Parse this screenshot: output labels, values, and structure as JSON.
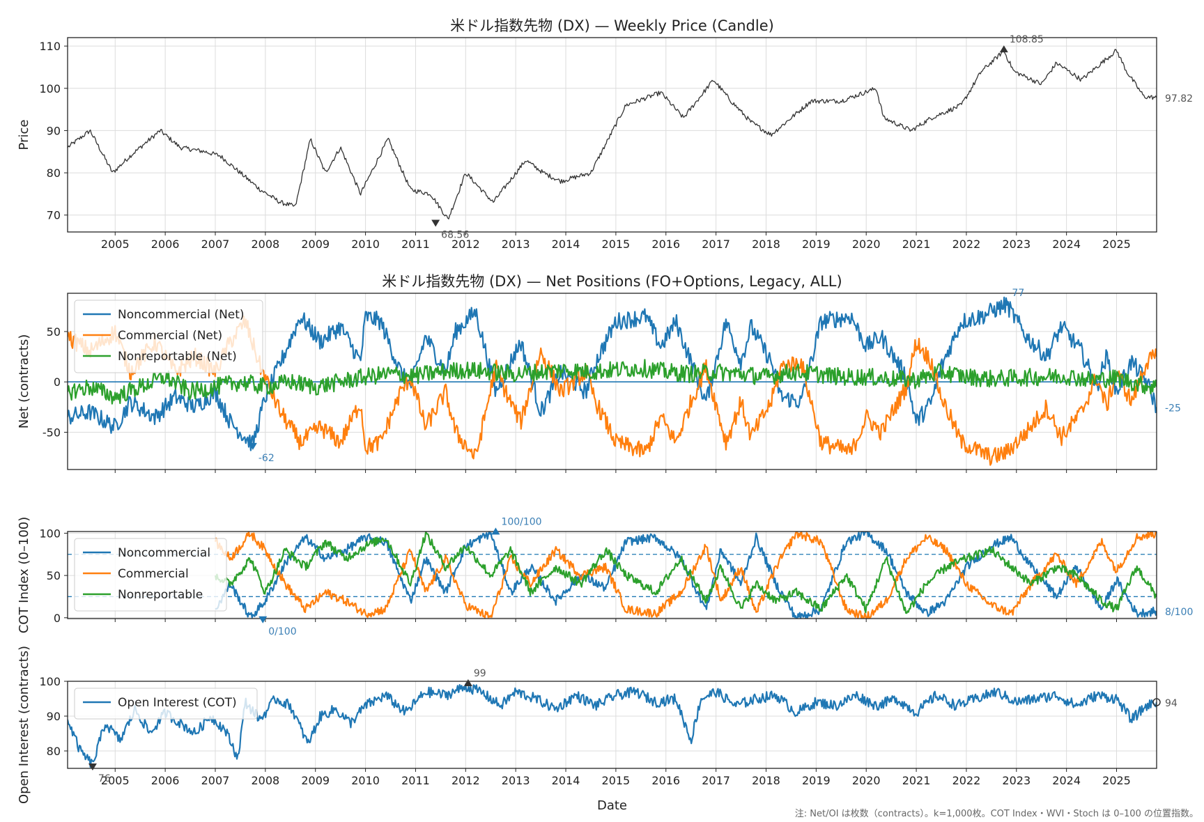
{
  "footnote": "注: Net/OI は枚数（contracts）。k=1,000枚。COT Index・WVI・Stoch は 0–100 の位置指数。",
  "chart_data": [
    {
      "id": "price",
      "type": "candlestick",
      "title": "米ドル指数先物 (DX) — Weekly Price (Candle)",
      "ylabel": "Price",
      "xlabel": "",
      "xlim": [
        2004.05,
        2025.8
      ],
      "ylim": [
        66,
        112
      ],
      "yticks": [
        70,
        80,
        90,
        100,
        110
      ],
      "xtick_years": [
        "2005",
        "2006",
        "2007",
        "2008",
        "2009",
        "2010",
        "2011",
        "2012",
        "2013",
        "2014",
        "2015",
        "2016",
        "2017",
        "2018",
        "2019",
        "2020",
        "2021",
        "2022",
        "2023",
        "2024",
        "2025"
      ],
      "grid": true,
      "color": "#333333",
      "series": [
        {
          "x": [
            2004.05,
            2004.5,
            2004.95,
            2005.3,
            2005.9,
            2006.3,
            2006.8,
            2007.1,
            2007.5,
            2007.9,
            2008.3,
            2008.6,
            2008.9,
            2009.2,
            2009.5,
            2009.9,
            2010.45,
            2010.9,
            2011.3,
            2011.65,
            2012.0,
            2012.55,
            2013.2,
            2013.55,
            2013.9,
            2014.5,
            2015.2,
            2015.9,
            2016.35,
            2016.95,
            2017.3,
            2017.7,
            2018.1,
            2018.9,
            2019.5,
            2020.2,
            2020.35,
            2020.9,
            2021.3,
            2021.9,
            2022.3,
            2022.75,
            2022.95,
            2023.5,
            2023.8,
            2024.3,
            2024.5,
            2025.0,
            2025.2,
            2025.55,
            2025.8
          ],
          "values": [
            86,
            90,
            80,
            84,
            90,
            86,
            85,
            84,
            80,
            76,
            73,
            72,
            88,
            80,
            86,
            75,
            88,
            76,
            75,
            69,
            80,
            73,
            83,
            80,
            78,
            80,
            96,
            99,
            93,
            102,
            97,
            92,
            89,
            97,
            97,
            100,
            93,
            90,
            93,
            96,
            104,
            108.85,
            104,
            101,
            106,
            102,
            104,
            109,
            104,
            98,
            97.82
          ]
        }
      ],
      "annotations": [
        {
          "text": "108.85",
          "x": 2022.75,
          "y": 108.85
        },
        {
          "text": "68.56",
          "x": 2011.4,
          "y": 68.56
        },
        {
          "text": "97.82",
          "x": 2025.8,
          "y": 97.82
        }
      ]
    },
    {
      "id": "net",
      "type": "line",
      "title": "米ドル指数先物 (DX) — Net Positions (FO+Options, Legacy, ALL)",
      "ylabel": "Net (contracts)",
      "xlim": [
        2004.05,
        2025.8
      ],
      "ylim": [
        -87,
        88
      ],
      "yticks": [
        -50,
        0,
        50
      ],
      "hline": 0,
      "legend": "top-left",
      "grid": true,
      "series": [
        {
          "name": "Noncommercial (Net)",
          "color": "#1f77b4",
          "x": [
            2004.05,
            2004.5,
            2005.0,
            2005.3,
            2005.8,
            2006.2,
            2006.6,
            2007.0,
            2007.3,
            2007.6,
            2007.75,
            2008.0,
            2008.4,
            2008.7,
            2009.1,
            2009.5,
            2009.9,
            2010.0,
            2010.3,
            2010.7,
            2010.9,
            2011.2,
            2011.6,
            2011.8,
            2012.2,
            2012.6,
            2012.8,
            2013.1,
            2013.5,
            2013.9,
            2014.4,
            2014.6,
            2015.0,
            2015.6,
            2015.9,
            2016.2,
            2016.5,
            2016.8,
            2017.2,
            2017.5,
            2017.7,
            2018.1,
            2018.3,
            2018.7,
            2019.1,
            2019.7,
            2020.0,
            2020.3,
            2020.8,
            2021.0,
            2021.3,
            2021.5,
            2021.9,
            2022.3,
            2022.5,
            2022.8,
            2023.2,
            2023.6,
            2023.9,
            2024.3,
            2024.6,
            2024.8,
            2025.0,
            2025.3,
            2025.6,
            2025.8
          ],
          "values": [
            -35,
            -30,
            -45,
            -20,
            -35,
            -15,
            -25,
            -10,
            -40,
            -55,
            -62,
            -15,
            30,
            65,
            40,
            55,
            20,
            65,
            60,
            10,
            -5,
            45,
            10,
            50,
            70,
            -10,
            10,
            40,
            -30,
            10,
            -10,
            20,
            60,
            65,
            35,
            60,
            20,
            -20,
            60,
            20,
            55,
            20,
            -15,
            -20,
            60,
            65,
            35,
            45,
            5,
            -40,
            -20,
            15,
            60,
            65,
            70,
            77,
            45,
            25,
            55,
            30,
            -5,
            25,
            -10,
            20,
            0,
            -25
          ]
        },
        {
          "name": "Commercial (Net)",
          "color": "#ff7f0e",
          "x": [
            2004.05,
            2004.5,
            2005.0,
            2005.3,
            2005.8,
            2006.2,
            2006.6,
            2007.0,
            2007.3,
            2007.6,
            2007.9,
            2008.3,
            2008.7,
            2009.1,
            2009.5,
            2009.9,
            2010.0,
            2010.3,
            2010.7,
            2010.9,
            2011.2,
            2011.6,
            2011.8,
            2012.2,
            2012.6,
            2012.8,
            2013.1,
            2013.5,
            2013.9,
            2014.4,
            2014.6,
            2015.0,
            2015.6,
            2015.9,
            2016.2,
            2016.5,
            2016.8,
            2017.2,
            2017.5,
            2017.7,
            2018.1,
            2018.3,
            2018.7,
            2019.1,
            2019.7,
            2020.0,
            2020.3,
            2020.8,
            2021.0,
            2021.3,
            2021.5,
            2021.9,
            2022.3,
            2022.5,
            2022.8,
            2023.2,
            2023.6,
            2023.9,
            2024.3,
            2024.6,
            2024.8,
            2025.0,
            2025.3,
            2025.6,
            2025.8
          ],
          "values": [
            45,
            30,
            50,
            10,
            40,
            10,
            25,
            10,
            40,
            60,
            15,
            -30,
            -60,
            -45,
            -60,
            -20,
            -65,
            -60,
            -10,
            5,
            -45,
            -10,
            -50,
            -75,
            15,
            -10,
            -40,
            30,
            -10,
            10,
            -20,
            -60,
            -70,
            -35,
            -60,
            -20,
            15,
            -60,
            -20,
            -55,
            -20,
            15,
            20,
            -60,
            -70,
            -35,
            -50,
            -5,
            40,
            20,
            -15,
            -60,
            -70,
            -75,
            -70,
            -50,
            -25,
            -55,
            -30,
            5,
            -25,
            10,
            -20,
            20,
            25
          ]
        },
        {
          "name": "Nonreportable (Net)",
          "color": "#2ca02c",
          "x": [
            2004.05,
            2004.5,
            2005.0,
            2005.5,
            2006.0,
            2006.5,
            2007.0,
            2007.5,
            2008.0,
            2008.5,
            2009.0,
            2009.5,
            2010.0,
            2010.5,
            2011.0,
            2011.5,
            2012.0,
            2012.5,
            2013.0,
            2013.5,
            2014.0,
            2014.5,
            2015.0,
            2015.5,
            2016.0,
            2016.5,
            2017.0,
            2017.5,
            2018.0,
            2018.5,
            2019.0,
            2019.5,
            2020.0,
            2020.5,
            2021.0,
            2021.5,
            2022.0,
            2022.5,
            2023.0,
            2023.5,
            2024.0,
            2024.5,
            2025.0,
            2025.5,
            2025.8
          ],
          "values": [
            -10,
            -5,
            -15,
            -5,
            5,
            -10,
            -5,
            0,
            -5,
            0,
            -5,
            0,
            5,
            8,
            6,
            10,
            12,
            10,
            8,
            10,
            12,
            10,
            12,
            14,
            10,
            8,
            10,
            8,
            5,
            10,
            8,
            5,
            5,
            3,
            2,
            10,
            5,
            3,
            4,
            5,
            6,
            2,
            4,
            -3,
            -5
          ]
        }
      ],
      "annotations": [
        {
          "text": "77",
          "x": 2022.8,
          "y": 77
        },
        {
          "text": "-62",
          "x": 2007.75,
          "y": -62
        },
        {
          "text": "-25",
          "x": 2025.8,
          "y": -25
        }
      ]
    },
    {
      "id": "cot",
      "type": "line",
      "title": "",
      "ylabel": "COT Index (0–100)",
      "xlim": [
        2004.05,
        2025.8
      ],
      "ylim": [
        -1,
        102
      ],
      "yticks": [
        0,
        50,
        100
      ],
      "hlines": [
        75,
        25
      ],
      "legend": "top-left",
      "grid": true,
      "series": [
        {
          "name": "Noncommercial",
          "color": "#1f77b4",
          "x": [
            2007.0,
            2007.3,
            2007.7,
            2008.0,
            2008.4,
            2008.8,
            2009.2,
            2009.6,
            2010.0,
            2010.4,
            2010.9,
            2011.2,
            2011.6,
            2012.0,
            2012.5,
            2012.9,
            2013.3,
            2013.8,
            2014.3,
            2014.8,
            2015.2,
            2015.8,
            2016.3,
            2016.8,
            2017.1,
            2017.5,
            2017.8,
            2018.2,
            2018.6,
            2019.1,
            2019.6,
            2020.0,
            2020.4,
            2020.8,
            2021.2,
            2021.6,
            2022.0,
            2022.5,
            2022.9,
            2023.3,
            2023.8,
            2024.2,
            2024.7,
            2025.0,
            2025.4,
            2025.8
          ],
          "values": [
            10,
            40,
            0,
            20,
            65,
            95,
            70,
            80,
            95,
            90,
            20,
            70,
            30,
            85,
            100,
            30,
            60,
            20,
            50,
            35,
            90,
            95,
            70,
            10,
            80,
            40,
            95,
            40,
            0,
            10,
            90,
            100,
            80,
            30,
            5,
            20,
            60,
            85,
            95,
            60,
            25,
            60,
            10,
            45,
            5,
            8
          ]
        },
        {
          "name": "Commercial",
          "color": "#ff7f0e",
          "x": [
            2007.0,
            2007.3,
            2007.7,
            2008.0,
            2008.4,
            2008.8,
            2009.2,
            2009.6,
            2010.0,
            2010.4,
            2010.9,
            2011.2,
            2011.6,
            2012.0,
            2012.5,
            2012.9,
            2013.3,
            2013.8,
            2014.3,
            2014.8,
            2015.2,
            2015.8,
            2016.3,
            2016.8,
            2017.1,
            2017.5,
            2017.8,
            2018.2,
            2018.6,
            2019.1,
            2019.6,
            2020.0,
            2020.4,
            2020.8,
            2021.2,
            2021.6,
            2022.0,
            2022.5,
            2022.9,
            2023.3,
            2023.8,
            2024.2,
            2024.7,
            2025.0,
            2025.4,
            2025.8
          ],
          "values": [
            90,
            70,
            100,
            80,
            40,
            10,
            30,
            20,
            5,
            10,
            80,
            30,
            70,
            15,
            0,
            70,
            40,
            80,
            50,
            60,
            10,
            5,
            30,
            85,
            20,
            60,
            5,
            60,
            100,
            90,
            10,
            0,
            20,
            70,
            95,
            80,
            40,
            15,
            5,
            40,
            75,
            40,
            90,
            55,
            95,
            100
          ]
        },
        {
          "name": "Nonreportable",
          "color": "#2ca02c",
          "x": [
            2007.0,
            2007.3,
            2007.7,
            2008.0,
            2008.4,
            2008.8,
            2009.2,
            2009.6,
            2010.0,
            2010.4,
            2010.9,
            2011.2,
            2011.6,
            2012.0,
            2012.5,
            2012.9,
            2013.3,
            2013.8,
            2014.3,
            2014.8,
            2015.2,
            2015.8,
            2016.3,
            2016.8,
            2017.1,
            2017.5,
            2017.8,
            2018.2,
            2018.6,
            2019.1,
            2019.6,
            2020.0,
            2020.4,
            2020.8,
            2021.2,
            2021.6,
            2022.0,
            2022.5,
            2022.9,
            2023.3,
            2023.8,
            2024.2,
            2024.7,
            2025.0,
            2025.4,
            2025.8
          ],
          "values": [
            50,
            40,
            70,
            30,
            80,
            60,
            90,
            70,
            85,
            95,
            40,
            100,
            60,
            85,
            50,
            80,
            30,
            60,
            40,
            80,
            50,
            30,
            70,
            20,
            60,
            10,
            40,
            20,
            30,
            10,
            50,
            10,
            70,
            5,
            40,
            60,
            70,
            80,
            60,
            40,
            60,
            50,
            20,
            10,
            60,
            25
          ]
        }
      ],
      "annotations": [
        {
          "text": "100/100",
          "x": 2012.6,
          "y": 100
        },
        {
          "text": "0/100",
          "x": 2007.95,
          "y": 0
        },
        {
          "text": "8/100",
          "x": 2025.8,
          "y": 8
        }
      ]
    },
    {
      "id": "oi",
      "type": "line",
      "title": "",
      "ylabel": "Open Interest (contracts)",
      "xlabel": "Date",
      "xlim": [
        2004.05,
        2025.8
      ],
      "ylim": [
        75,
        100
      ],
      "yticks": [
        80,
        90,
        100
      ],
      "legend": "top-left",
      "grid": true,
      "series": [
        {
          "name": "Open Interest (COT)",
          "color": "#1f77b4",
          "x": [
            2004.05,
            2004.3,
            2004.55,
            2004.8,
            2005.1,
            2005.4,
            2005.7,
            2006.0,
            2006.3,
            2006.6,
            2006.9,
            2007.2,
            2007.45,
            2007.6,
            2007.9,
            2008.2,
            2008.5,
            2008.85,
            2009.1,
            2009.4,
            2009.7,
            2010.0,
            2010.4,
            2010.8,
            2011.2,
            2011.6,
            2012.0,
            2012.3,
            2012.7,
            2013.0,
            2013.4,
            2013.8,
            2014.2,
            2014.6,
            2015.0,
            2015.4,
            2015.8,
            2016.2,
            2016.5,
            2016.7,
            2017.0,
            2017.4,
            2017.8,
            2018.2,
            2018.6,
            2019.0,
            2019.4,
            2019.8,
            2020.2,
            2020.6,
            2021.0,
            2021.4,
            2021.8,
            2022.2,
            2022.6,
            2023.0,
            2023.4,
            2023.8,
            2024.2,
            2024.6,
            2025.0,
            2025.3,
            2025.6,
            2025.8
          ],
          "values": [
            89,
            80,
            76,
            88,
            83,
            92,
            85,
            91,
            88,
            85,
            90,
            86,
            78,
            94,
            89,
            95,
            93,
            82,
            90,
            92,
            88,
            93,
            96,
            91,
            97,
            96,
            98.5,
            97,
            93,
            97,
            95,
            92,
            96,
            93,
            96,
            97,
            94,
            95,
            83,
            95,
            97,
            93,
            95,
            96,
            91,
            94,
            93,
            96,
            93,
            95,
            91,
            96,
            93,
            95,
            97,
            94,
            95,
            96,
            93,
            96,
            95,
            89,
            93,
            94
          ]
        }
      ],
      "annotations": [
        {
          "text": "99",
          "x": 2012.05,
          "y": 99
        },
        {
          "text": "76",
          "x": 2004.55,
          "y": 76
        },
        {
          "text": "94",
          "x": 2025.8,
          "y": 94
        }
      ]
    }
  ]
}
